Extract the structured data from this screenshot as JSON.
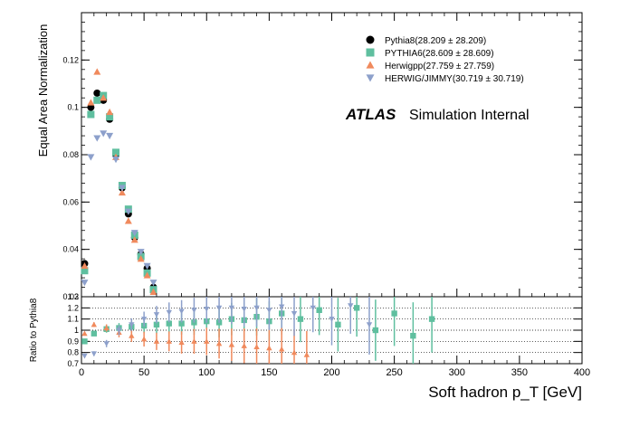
{
  "chart_data": [
    {
      "type": "scatter",
      "panel": "main",
      "ylabel": "Equal Area Normalization",
      "xlim": [
        0,
        400
      ],
      "ylim": [
        0.02,
        0.14
      ],
      "yticks": [
        0.02,
        0.04,
        0.06,
        0.08,
        0.1,
        0.12
      ],
      "ytick_labels": [
        "0.02",
        "0.04",
        "0.06",
        "0.08",
        "0.1",
        "0.12"
      ],
      "annotation": {
        "atlas": "ATLAS",
        "text": "Simulation Internal"
      },
      "legend_position": "top-right",
      "series": [
        {
          "name": "Pythia8(28.209 ± 28.209)",
          "color": "#000000",
          "marker": "circle",
          "x": [
            2.5,
            7.5,
            12.5,
            17.5,
            22.5,
            27.5,
            32.5,
            37.5,
            42.5,
            47.5,
            52.5,
            57.5
          ],
          "y": [
            0.034,
            0.1,
            0.106,
            0.103,
            0.095,
            0.08,
            0.066,
            0.055,
            0.045,
            0.038,
            0.032,
            0.024
          ]
        },
        {
          "name": "PYTHIA6(28.609 ± 28.609)",
          "color": "#5fbf9f",
          "marker": "square",
          "x": [
            2.5,
            7.5,
            12.5,
            17.5,
            22.5,
            27.5,
            32.5,
            37.5,
            42.5,
            47.5,
            52.5,
            57.5
          ],
          "y": [
            0.031,
            0.097,
            0.103,
            0.105,
            0.096,
            0.081,
            0.067,
            0.057,
            0.046,
            0.037,
            0.03,
            0.023
          ]
        },
        {
          "name": "Herwigpp(27.759 ± 27.759)",
          "color": "#f08a5d",
          "marker": "triangle-up",
          "x": [
            2.5,
            7.5,
            12.5,
            17.5,
            22.5,
            27.5,
            32.5,
            37.5,
            42.5,
            47.5,
            52.5,
            57.5
          ],
          "y": [
            0.033,
            0.102,
            0.115,
            0.104,
            0.098,
            0.079,
            0.064,
            0.052,
            0.044,
            0.036,
            0.029,
            0.022
          ]
        },
        {
          "name": "HERWIG/JIMMY(30.719 ± 30.719)",
          "color": "#8da0cb",
          "marker": "triangle-down",
          "x": [
            2.5,
            7.5,
            12.5,
            17.5,
            22.5,
            27.5,
            32.5,
            37.5,
            42.5,
            47.5,
            52.5,
            57.5
          ],
          "y": [
            0.026,
            0.079,
            0.087,
            0.089,
            0.088,
            0.078,
            0.066,
            0.056,
            0.047,
            0.039,
            0.033,
            0.026
          ]
        }
      ]
    },
    {
      "type": "scatter",
      "panel": "ratio",
      "xlabel": "Soft hadron p_T [GeV]",
      "ylabel": "Ratio to Pythia8",
      "xlim": [
        0,
        400
      ],
      "ylim": [
        0.7,
        1.3
      ],
      "xticks": [
        0,
        50,
        100,
        150,
        200,
        250,
        300,
        350,
        400
      ],
      "xtick_labels": [
        "0",
        "50",
        "100",
        "150",
        "200",
        "250",
        "300",
        "350",
        "400"
      ],
      "yticks": [
        0.7,
        0.8,
        0.9,
        1,
        1.1,
        1.2,
        1.3
      ],
      "ytick_labels": [
        "0.7",
        "0.8",
        "0.9",
        "1",
        "1.1",
        "1.2",
        "1.3"
      ],
      "grid": "horizontal dotted",
      "series": [
        {
          "name": "PYTHIA6",
          "color": "#5fbf9f",
          "marker": "square",
          "x": [
            2.5,
            10,
            20,
            30,
            40,
            50,
            60,
            70,
            80,
            90,
            100,
            110,
            120,
            130,
            140,
            150,
            160,
            175,
            190,
            205,
            220,
            235,
            250,
            265,
            280
          ],
          "y": [
            0.9,
            0.97,
            1.01,
            1.02,
            1.03,
            1.04,
            1.05,
            1.06,
            1.06,
            1.07,
            1.08,
            1.07,
            1.1,
            1.09,
            1.12,
            1.08,
            1.15,
            1.1,
            1.18,
            1.05,
            1.2,
            1.0,
            1.15,
            0.95,
            1.1
          ]
        },
        {
          "name": "Herwigpp",
          "color": "#f08a5d",
          "marker": "triangle-up",
          "x": [
            2.5,
            10,
            20,
            30,
            40,
            50,
            60,
            70,
            80,
            90,
            100,
            110,
            120,
            130,
            140,
            150,
            160,
            170,
            180
          ],
          "y": [
            0.97,
            1.05,
            1.02,
            0.98,
            0.95,
            0.92,
            0.9,
            0.9,
            0.89,
            0.9,
            0.9,
            0.88,
            0.87,
            0.86,
            0.85,
            0.84,
            0.83,
            0.8,
            0.78
          ]
        },
        {
          "name": "HERWIG/JIMMY",
          "color": "#8da0cb",
          "marker": "triangle-down",
          "x": [
            2.5,
            10,
            20,
            30,
            40,
            50,
            60,
            70,
            80,
            90,
            100,
            110,
            120,
            130,
            140,
            150,
            160,
            170,
            185,
            200,
            215,
            230
          ],
          "y": [
            0.77,
            0.79,
            0.88,
            1.0,
            1.05,
            1.1,
            1.14,
            1.16,
            1.17,
            1.18,
            1.19,
            1.2,
            1.2,
            1.19,
            1.2,
            1.18,
            1.21,
            1.15,
            1.2,
            1.1,
            1.22,
            1.05
          ]
        }
      ]
    }
  ]
}
